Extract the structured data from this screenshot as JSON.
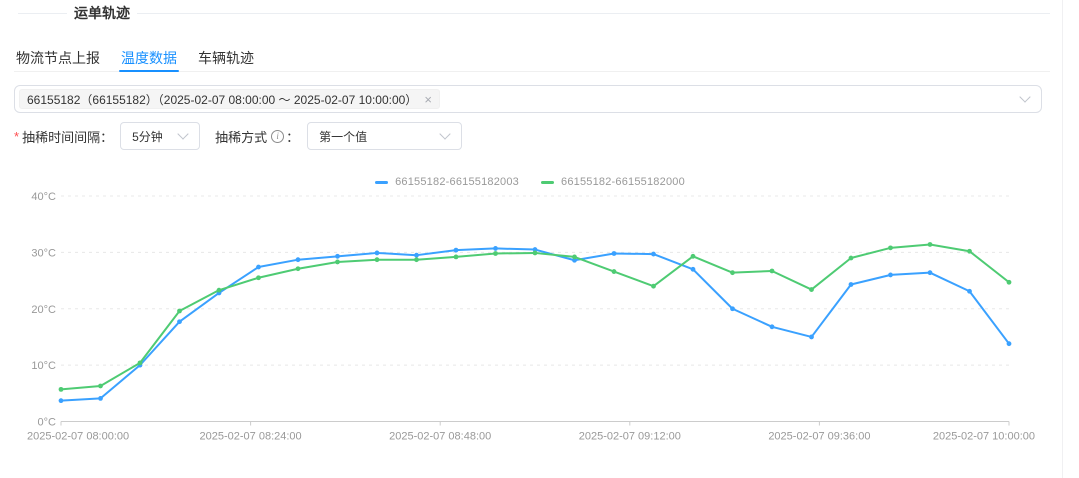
{
  "header": {
    "title": "运单轨迹"
  },
  "tabs": [
    {
      "label": "物流节点上报",
      "active": false
    },
    {
      "label": "温度数据",
      "active": true
    },
    {
      "label": "车辆轨迹",
      "active": false
    }
  ],
  "device_select": {
    "tag_text": "66155182（66155182）（2025-02-07 08:00:00 ～ 2025-02-07 10:00:00）",
    "remove_icon": "×"
  },
  "filters": {
    "required_marker": "*",
    "interval_label": "抽稀时间间隔：",
    "interval_value": "5分钟",
    "method_label": "抽稀方式",
    "method_colon": "：",
    "method_value": "第一个值"
  },
  "chart_data": {
    "type": "line",
    "title": "",
    "x": [
      "08:00",
      "08:05",
      "08:10",
      "08:15",
      "08:20",
      "08:25",
      "08:30",
      "08:35",
      "08:40",
      "08:45",
      "08:50",
      "08:55",
      "09:00",
      "09:05",
      "09:10",
      "09:15",
      "09:20",
      "09:25",
      "09:30",
      "09:35",
      "09:40",
      "09:45",
      "09:50",
      "09:55",
      "10:00"
    ],
    "x_tick_labels": [
      "2025-02-07 08:00:00",
      "2025-02-07 08:24:00",
      "2025-02-07 08:48:00",
      "2025-02-07 09:12:00",
      "2025-02-07 09:36:00",
      "2025-02-07 10:00:00"
    ],
    "y_ticks": [
      0,
      10,
      20,
      30,
      40
    ],
    "y_tick_labels": [
      "0°C",
      "10°C",
      "20°C",
      "30°C",
      "40°C"
    ],
    "ylim": [
      0,
      40
    ],
    "grid": "dashed-horizontal",
    "legend_position": "top-center",
    "series": [
      {
        "name": "66155182-66155182003",
        "color": "#3AA1FF",
        "values": [
          3.7,
          4.1,
          10.0,
          17.7,
          22.8,
          27.4,
          28.7,
          29.3,
          29.9,
          29.5,
          30.4,
          30.7,
          30.5,
          28.6,
          29.8,
          29.7,
          27.0,
          20.0,
          16.8,
          15.0,
          24.3,
          26.0,
          26.4,
          23.1,
          13.8
        ]
      },
      {
        "name": "66155182-66155182000",
        "color": "#4ECB73",
        "values": [
          5.7,
          6.3,
          10.4,
          19.6,
          23.3,
          25.5,
          27.1,
          28.3,
          28.7,
          28.7,
          29.2,
          29.8,
          29.9,
          29.2,
          26.6,
          24.0,
          29.3,
          26.4,
          26.7,
          23.4,
          29.0,
          30.8,
          31.4,
          30.2,
          24.7
        ]
      }
    ]
  },
  "colors": {
    "accent_blue": "#1890ff",
    "series_blue": "#3AA1FF",
    "series_green": "#4ECB73",
    "axis_label": "#999999",
    "grid_line": "#e8e8e8",
    "axis_line": "#cccccc",
    "required_red": "#ff4d4f"
  }
}
